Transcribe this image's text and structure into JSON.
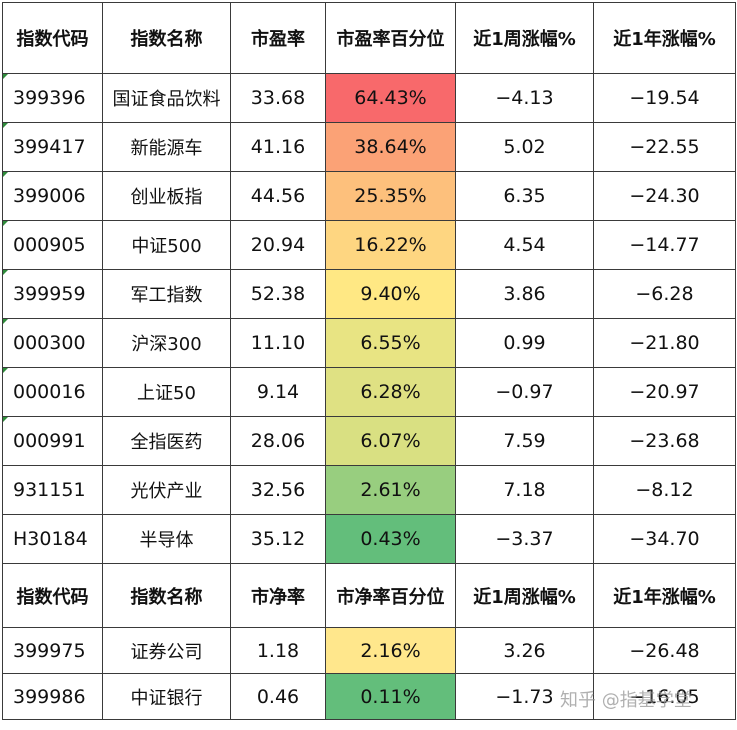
{
  "pe_table": {
    "headers": [
      "指数代码",
      "指数名称",
      "市盈率",
      "市盈率百分位",
      "近1周涨幅%",
      "近1年涨幅%"
    ],
    "rows": [
      {
        "code": "399396",
        "name": "国证食品饮料",
        "value": "33.68",
        "pct": "64.43%",
        "week": "−4.13",
        "year": "−19.54",
        "color": "#f8696b"
      },
      {
        "code": "399417",
        "name": "新能源车",
        "value": "41.16",
        "pct": "38.64%",
        "week": "5.02",
        "year": "−22.55",
        "color": "#fba276"
      },
      {
        "code": "399006",
        "name": "创业板指",
        "value": "44.56",
        "pct": "25.35%",
        "week": "6.35",
        "year": "−24.30",
        "color": "#fdc07c"
      },
      {
        "code": "000905",
        "name": "中证500",
        "value": "20.94",
        "pct": "16.22%",
        "week": "4.54",
        "year": "−14.77",
        "color": "#fed681"
      },
      {
        "code": "399959",
        "name": "军工指数",
        "value": "52.38",
        "pct": "9.40%",
        "week": "3.86",
        "year": "−6.28",
        "color": "#ffe884"
      },
      {
        "code": "000300",
        "name": "沪深300",
        "value": "11.10",
        "pct": "6.55%",
        "week": "0.99",
        "year": "−21.80",
        "color": "#e8e483"
      },
      {
        "code": "000016",
        "name": "上证50",
        "value": "9.14",
        "pct": "6.28%",
        "week": "−0.97",
        "year": "−20.97",
        "color": "#dfe183"
      },
      {
        "code": "000991",
        "name": "全指医药",
        "value": "28.06",
        "pct": "6.07%",
        "week": "7.59",
        "year": "−23.68",
        "color": "#d9e082"
      },
      {
        "code": "931151",
        "name": "光伏产业",
        "value": "32.56",
        "pct": "2.61%",
        "week": "7.18",
        "year": "−8.12",
        "color": "#98ce7f"
      },
      {
        "code": "H30184",
        "name": "半导体",
        "value": "35.12",
        "pct": "0.43%",
        "week": "−3.37",
        "year": "−34.70",
        "color": "#63be7b"
      }
    ]
  },
  "pb_table": {
    "headers": [
      "指数代码",
      "指数名称",
      "市净率",
      "市净率百分位",
      "近1周涨幅%",
      "近1年涨幅%"
    ],
    "rows": [
      {
        "code": "399975",
        "name": "证券公司",
        "value": "1.18",
        "pct": "2.16%",
        "week": "3.26",
        "year": "−26.48",
        "color": "#ffe78c"
      },
      {
        "code": "399986",
        "name": "中证银行",
        "value": "0.46",
        "pct": "0.11%",
        "week": "−1.73",
        "year": "−16.05",
        "color": "#63be7b"
      }
    ]
  },
  "watermark": {
    "text": "知乎 @指基学堂"
  }
}
